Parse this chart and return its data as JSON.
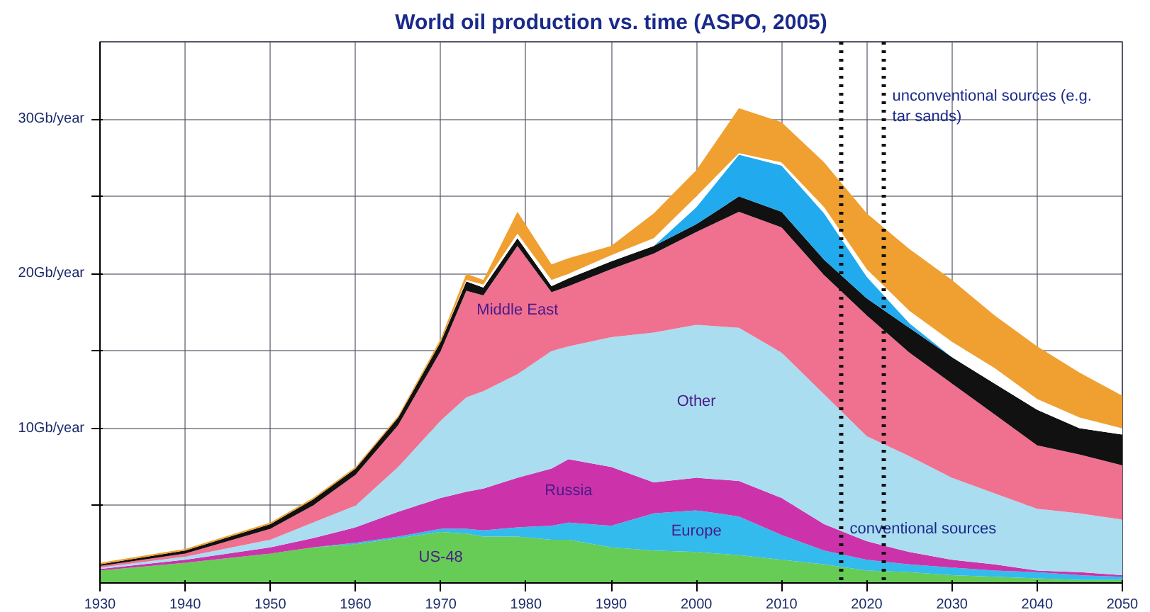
{
  "chart_data": {
    "type": "area",
    "stacked": true,
    "title": "World oil production vs. time (ASPO, 2005)",
    "x": [
      1930,
      1940,
      1950,
      1955,
      1960,
      1965,
      1970,
      1973,
      1975,
      1979,
      1983,
      1985,
      1990,
      1995,
      2000,
      2005,
      2010,
      2015,
      2020,
      2025,
      2030,
      2035,
      2040,
      2045,
      2050
    ],
    "series": [
      {
        "name": "US-48",
        "color": "#66cc55",
        "values": [
          0.8,
          1.3,
          1.9,
          2.3,
          2.5,
          2.9,
          3.3,
          3.2,
          3.0,
          3.0,
          2.8,
          2.8,
          2.3,
          2.1,
          2.0,
          1.8,
          1.5,
          1.2,
          0.8,
          0.7,
          0.5,
          0.4,
          0.3,
          0.2,
          0.2
        ]
      },
      {
        "name": "Europe",
        "color": "#33bbee",
        "values": [
          0,
          0,
          0,
          0,
          0.1,
          0.1,
          0.2,
          0.3,
          0.4,
          0.6,
          0.9,
          1.1,
          1.4,
          2.4,
          2.7,
          2.5,
          1.6,
          0.9,
          0.7,
          0.5,
          0.5,
          0.4,
          0.4,
          0.3,
          0.2
        ]
      },
      {
        "name": "Russia",
        "color": "#cc33aa",
        "values": [
          0.1,
          0.2,
          0.4,
          0.6,
          1.0,
          1.6,
          2.0,
          2.4,
          2.7,
          3.2,
          3.7,
          4.1,
          3.8,
          2.0,
          2.1,
          2.3,
          2.4,
          1.7,
          1.2,
          0.8,
          0.5,
          0.4,
          0.1,
          0.2,
          0.1
        ]
      },
      {
        "name": "Other",
        "color": "#aaddf0",
        "values": [
          0.1,
          0.2,
          0.5,
          1.0,
          1.4,
          2.9,
          5.0,
          6.1,
          6.3,
          6.7,
          7.6,
          7.3,
          8.4,
          9.7,
          9.9,
          9.9,
          9.4,
          8.4,
          6.8,
          6.2,
          5.3,
          4.6,
          4.0,
          3.8,
          3.6
        ]
      },
      {
        "name": "Middle East",
        "color": "#f07090",
        "values": [
          0.1,
          0.2,
          0.7,
          1.1,
          2.0,
          2.7,
          4.5,
          6.9,
          6.2,
          8.3,
          3.8,
          3.9,
          4.4,
          5.1,
          6.0,
          7.5,
          8.1,
          7.7,
          7.8,
          6.7,
          6.1,
          5.1,
          4.1,
          3.8,
          3.5
        ]
      },
      {
        "color": "#111111",
        "values": [
          0.1,
          0.2,
          0.3,
          0.4,
          0.4,
          0.5,
          0.6,
          0.6,
          0.5,
          0.5,
          0.4,
          0.5,
          0.5,
          0.5,
          0.5,
          1.0,
          1.0,
          1.0,
          1.1,
          1.6,
          1.7,
          2.0,
          2.3,
          1.7,
          2.0
        ]
      },
      {
        "color": "#22aaee",
        "values": [
          0,
          0,
          0,
          0,
          0,
          0,
          0,
          0,
          0,
          0,
          0,
          0,
          0,
          0,
          1.1,
          2.7,
          3.0,
          3.0,
          1.4,
          0.3,
          0,
          0,
          0,
          0,
          0
        ]
      },
      {
        "color": "#ffffff",
        "values": [
          0,
          0,
          0,
          0,
          0,
          0,
          0,
          0.1,
          0.2,
          0.3,
          0.4,
          0.3,
          0.4,
          0.5,
          0.7,
          0.1,
          0.2,
          0.4,
          0.5,
          0.8,
          1.0,
          1.0,
          0.7,
          0.7,
          0.4
        ]
      },
      {
        "color": "#f0a030",
        "values": [
          0.1,
          0.1,
          0.1,
          0.1,
          0.1,
          0.1,
          0.2,
          0.4,
          0.3,
          1.4,
          1.0,
          1.0,
          0.6,
          1.6,
          1.7,
          2.9,
          2.6,
          2.9,
          3.6,
          4.0,
          4.0,
          3.4,
          3.4,
          2.9,
          2.1
        ]
      }
    ],
    "xlim": [
      1930,
      2050
    ],
    "ylim": [
      0,
      35
    ],
    "xticks": [
      1930,
      1940,
      1950,
      1960,
      1970,
      1980,
      1990,
      2000,
      2010,
      2020,
      2030,
      2040,
      2050
    ],
    "yticks": [
      {
        "value": 5,
        "label": null
      },
      {
        "value": 10,
        "label": "10Gb/year"
      },
      {
        "value": 15,
        "label": null
      },
      {
        "value": 20,
        "label": "20Gb/year"
      },
      {
        "value": 25,
        "label": null
      },
      {
        "value": 30,
        "label": "30Gb/year"
      }
    ],
    "grid": true,
    "ref_lines": [
      {
        "axis": "x",
        "value": 2017,
        "label": "conventional sources",
        "color": "#111111",
        "line_style": "dotted"
      },
      {
        "axis": "x",
        "value": 2022,
        "label": "unconventional sources (e.g. tar sands)",
        "color": "#111111",
        "line_style": "dotted"
      }
    ]
  }
}
